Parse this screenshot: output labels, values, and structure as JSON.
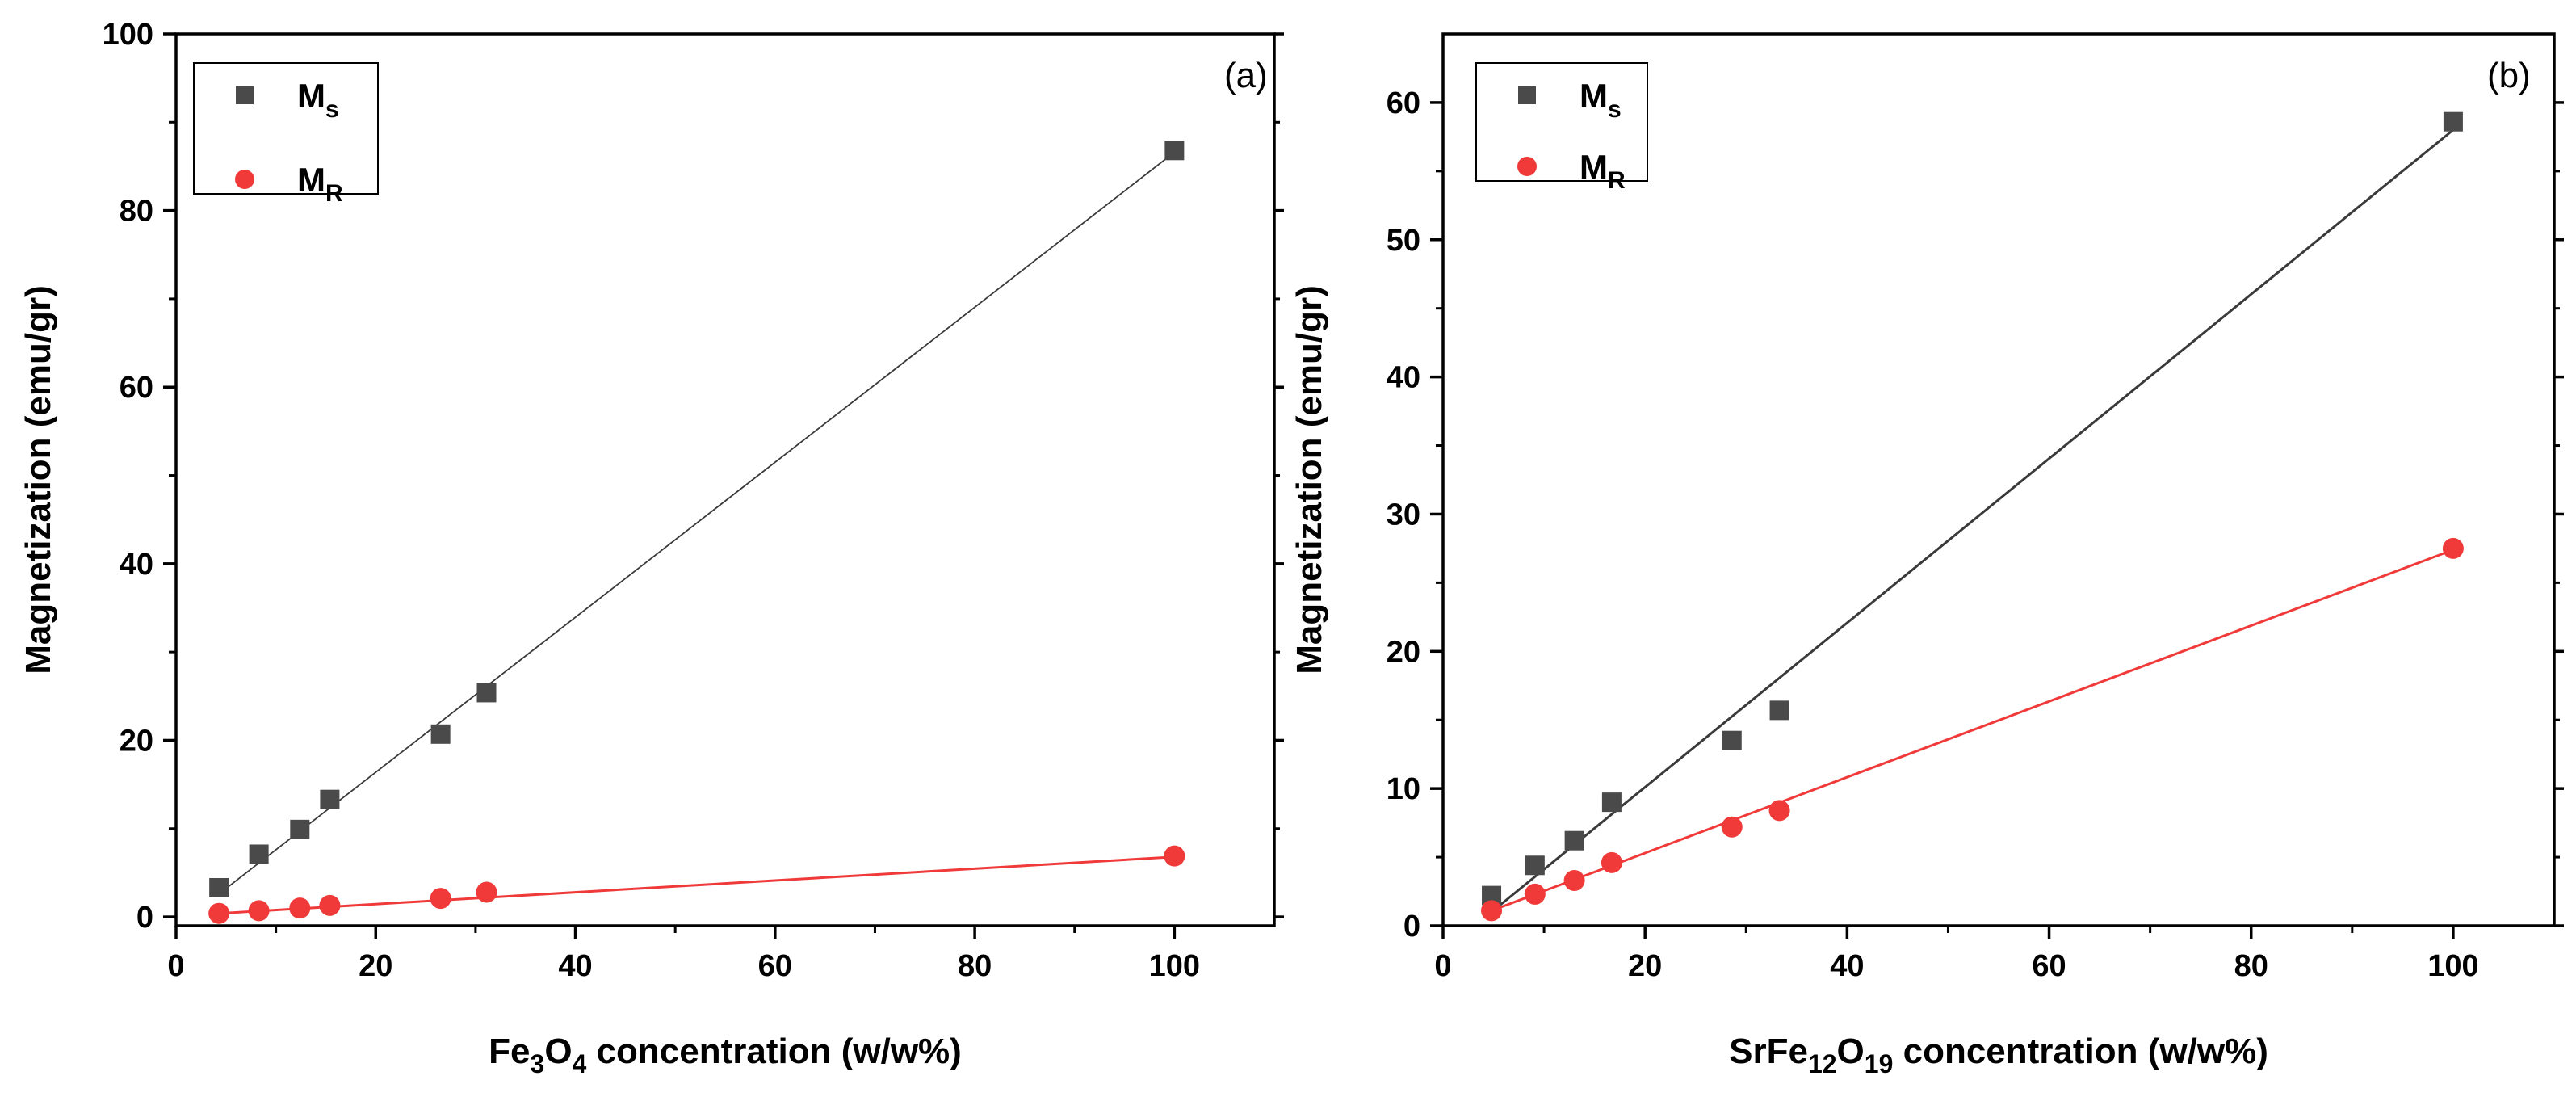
{
  "colors": {
    "ms": "#4a4a4a",
    "mr": "#f03a3a",
    "ms_fit": "#3a3a3a",
    "mr_fit": "#f03a3a",
    "axis": "#000000"
  },
  "chart_data": [
    {
      "id": "a",
      "type": "scatter",
      "panel_label": "(a)",
      "xlabel": {
        "prefix": "Fe",
        "sub1": "3",
        "mid": "O",
        "sub2": "4",
        "suffix": " concentration (w/w%)"
      },
      "ylabel": "Magnetization (emu/gr)",
      "xlim": [
        0,
        110
      ],
      "ylim": [
        -1,
        100
      ],
      "xticks": [
        0,
        20,
        40,
        60,
        80,
        100
      ],
      "yticks": [
        0,
        20,
        40,
        60,
        80,
        100
      ],
      "legend_position": "top-left",
      "series": [
        {
          "key": "ms",
          "name": "M",
          "sub": "s",
          "marker": "square",
          "x": [
            4.3,
            8.3,
            12.4,
            15.4,
            26.5,
            31.1,
            100
          ],
          "y": [
            3.3,
            7.1,
            9.9,
            13.3,
            20.7,
            25.4,
            86.8
          ],
          "fit": [
            [
              4.3,
              2.6
            ],
            [
              100,
              86.6
            ]
          ]
        },
        {
          "key": "mr",
          "name": "M",
          "sub": "R",
          "marker": "circle",
          "x": [
            4.3,
            8.3,
            12.4,
            15.4,
            26.5,
            31.1,
            100
          ],
          "y": [
            0.4,
            0.7,
            1.0,
            1.3,
            2.1,
            2.8,
            6.9
          ],
          "fit": [
            [
              4.3,
              0.4
            ],
            [
              100,
              6.8
            ]
          ]
        }
      ]
    },
    {
      "id": "b",
      "type": "scatter",
      "panel_label": "(b)",
      "xlabel": {
        "prefix": "SrFe",
        "sub1": "12",
        "mid": "O",
        "sub2": "19",
        "suffix": " concentration (w/w%)"
      },
      "ylabel": "Magnetization (emu/gr)",
      "xlim": [
        0,
        110
      ],
      "ylim": [
        0,
        65
      ],
      "xticks": [
        0,
        20,
        40,
        60,
        80,
        100
      ],
      "yticks": [
        0,
        10,
        20,
        30,
        40,
        50,
        60
      ],
      "legend_position": "top-left",
      "series": [
        {
          "key": "ms",
          "name": "M",
          "sub": "s",
          "marker": "square",
          "x": [
            4.8,
            9.1,
            13.0,
            16.7,
            28.6,
            33.3,
            100
          ],
          "y": [
            2.2,
            4.4,
            6.2,
            9.0,
            13.5,
            15.7,
            58.6
          ],
          "fit": [
            [
              4.8,
              1.0
            ],
            [
              100,
              58.0
            ]
          ]
        },
        {
          "key": "mr",
          "name": "M",
          "sub": "R",
          "marker": "circle",
          "x": [
            4.8,
            9.1,
            13.0,
            16.7,
            28.6,
            33.3,
            100
          ],
          "y": [
            1.1,
            2.3,
            3.3,
            4.6,
            7.2,
            8.4,
            27.5
          ],
          "fit": [
            [
              4.8,
              1.1
            ],
            [
              100,
              27.4
            ]
          ]
        }
      ]
    }
  ]
}
